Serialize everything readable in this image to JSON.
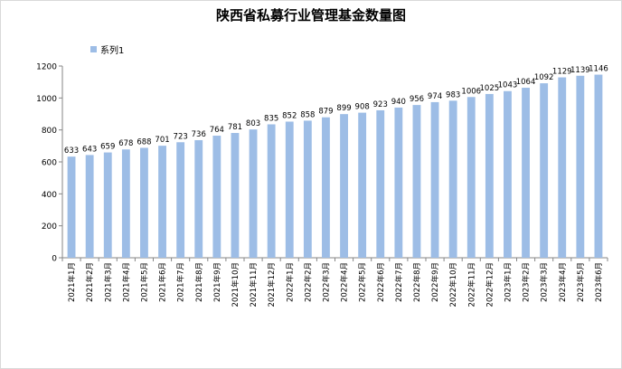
{
  "chart_data": {
    "type": "bar",
    "title": "陕西省私募行业管理基金数量图",
    "xlabel": "",
    "ylabel": "",
    "ylim": [
      0,
      1200
    ],
    "yticks": [
      0,
      200,
      400,
      600,
      800,
      1000,
      1200
    ],
    "grid": false,
    "legend": "top-left",
    "categories": [
      "2021年1月",
      "2021年2月",
      "2021年3月",
      "2021年4月",
      "2021年5月",
      "2021年6月",
      "2021年7月",
      "2021年8月",
      "2021年9月",
      "2021年10月",
      "2021年11月",
      "2021年12月",
      "2022年1月",
      "2022年2月",
      "2022年3月",
      "2022年4月",
      "2022年5月",
      "2022年6月",
      "2022年7月",
      "2022年8月",
      "2022年9月",
      "2022年10月",
      "2022年11月",
      "2022年12月",
      "2023年1月",
      "2023年2月",
      "2023年3月",
      "2023年4月",
      "2023年5月",
      "2023年6月"
    ],
    "series": [
      {
        "name": "系列1",
        "color": "#9dbde6",
        "values": [
          633,
          643,
          659,
          678,
          688,
          701,
          723,
          736,
          764,
          781,
          803,
          835,
          852,
          858,
          879,
          899,
          908,
          923,
          940,
          956,
          974,
          983,
          1006,
          1025,
          1043,
          1064,
          1092,
          1129,
          1139,
          1146
        ]
      }
    ]
  }
}
